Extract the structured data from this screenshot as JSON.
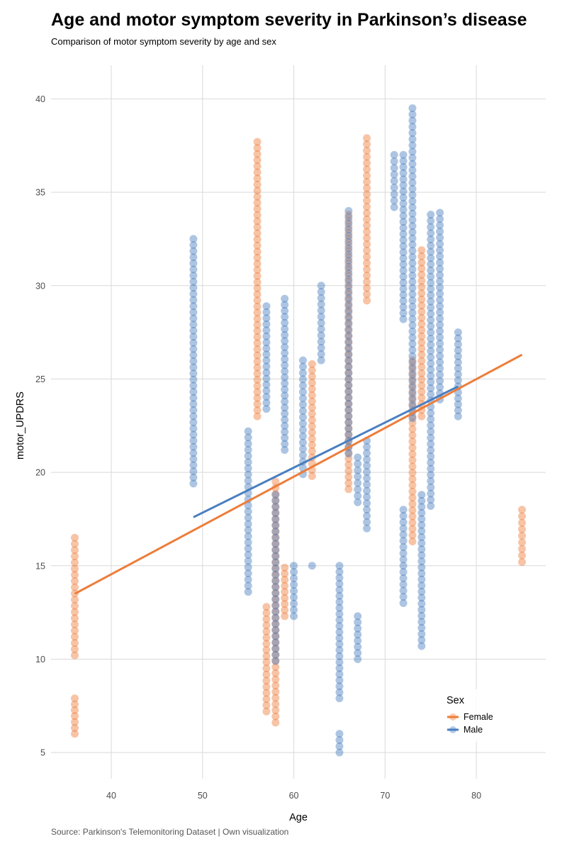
{
  "chart_data": {
    "type": "scatter",
    "title": "Age and motor symptom severity in Parkinson’s disease",
    "subtitle": "Comparison of motor symptom severity by age and sex",
    "caption": "Source: Parkinson's Telemonitoring Dataset | Own visualization",
    "xlabel": "Age",
    "ylabel": "motor_UPDRS",
    "xlim": [
      33.4,
      87.6
    ],
    "ylim": [
      3.6,
      41.8
    ],
    "x_ticks": [
      "40",
      "50",
      "60",
      "70",
      "80"
    ],
    "y_ticks": [
      "5",
      "10",
      "15",
      "20",
      "25",
      "30",
      "35",
      "40"
    ],
    "grid": true,
    "legend": {
      "title": "Sex",
      "position": "bottom-right",
      "entries": [
        "Female",
        "Male"
      ]
    },
    "series": [
      {
        "name": "Female",
        "color": "#ED7D3A",
        "trend": [
          [
            36,
            13.5
          ],
          [
            85,
            26.3
          ]
        ],
        "groups": [
          {
            "x": 36,
            "ranges": [
              [
                6.0,
                7.9
              ],
              [
                10.2,
                16.5
              ]
            ]
          },
          {
            "x": 56,
            "ranges": [
              [
                23.0,
                37.7
              ]
            ]
          },
          {
            "x": 57,
            "ranges": [
              [
                7.2,
                12.8
              ]
            ]
          },
          {
            "x": 58,
            "ranges": [
              [
                6.6,
                19.5
              ]
            ]
          },
          {
            "x": 59,
            "ranges": [
              [
                12.3,
                14.9
              ]
            ]
          },
          {
            "x": 62,
            "ranges": [
              [
                19.8,
                25.8
              ]
            ]
          },
          {
            "x": 66,
            "ranges": [
              [
                19.1,
                33.8
              ]
            ]
          },
          {
            "x": 68,
            "ranges": [
              [
                29.2,
                37.9
              ]
            ]
          },
          {
            "x": 73,
            "ranges": [
              [
                16.3,
                26.0
              ]
            ]
          },
          {
            "x": 74,
            "ranges": [
              [
                23.0,
                31.9
              ]
            ]
          },
          {
            "x": 85,
            "ranges": [
              [
                15.2,
                18.0
              ]
            ]
          }
        ]
      },
      {
        "name": "Male",
        "color": "#4A7FBF",
        "trend": [
          [
            49,
            17.6
          ],
          [
            78,
            24.6
          ]
        ],
        "groups": [
          {
            "x": 49,
            "ranges": [
              [
                19.4,
                32.5
              ]
            ]
          },
          {
            "x": 55,
            "ranges": [
              [
                13.6,
                22.2
              ]
            ]
          },
          {
            "x": 57,
            "ranges": [
              [
                23.4,
                28.9
              ]
            ]
          },
          {
            "x": 58,
            "ranges": [
              [
                9.9,
                18.8
              ]
            ]
          },
          {
            "x": 59,
            "ranges": [
              [
                21.2,
                29.3
              ]
            ]
          },
          {
            "x": 60,
            "ranges": [
              [
                12.3,
                15.0
              ]
            ]
          },
          {
            "x": 61,
            "ranges": [
              [
                19.9,
                26.0
              ]
            ]
          },
          {
            "x": 62,
            "ranges": [
              [
                15.0,
                15.0
              ]
            ]
          },
          {
            "x": 63,
            "ranges": [
              [
                26.0,
                30.0
              ]
            ]
          },
          {
            "x": 65,
            "ranges": [
              [
                5.0,
                6.0
              ],
              [
                7.9,
                15.0
              ]
            ]
          },
          {
            "x": 66,
            "ranges": [
              [
                21.0,
                34.0
              ]
            ]
          },
          {
            "x": 67,
            "ranges": [
              [
                10.0,
                12.3
              ],
              [
                18.4,
                20.8
              ]
            ]
          },
          {
            "x": 68,
            "ranges": [
              [
                17.0,
                21.7
              ]
            ]
          },
          {
            "x": 71,
            "ranges": [
              [
                34.2,
                37.0
              ]
            ]
          },
          {
            "x": 72,
            "ranges": [
              [
                13.0,
                18.0
              ],
              [
                28.2,
                37.0
              ]
            ]
          },
          {
            "x": 73,
            "ranges": [
              [
                22.9,
                39.5
              ]
            ]
          },
          {
            "x": 74,
            "ranges": [
              [
                10.7,
                18.8
              ]
            ]
          },
          {
            "x": 75,
            "ranges": [
              [
                18.2,
                33.8
              ]
            ]
          },
          {
            "x": 76,
            "ranges": [
              [
                23.9,
                33.9
              ]
            ]
          },
          {
            "x": 78,
            "ranges": [
              [
                23.0,
                27.5
              ]
            ]
          }
        ]
      }
    ]
  }
}
